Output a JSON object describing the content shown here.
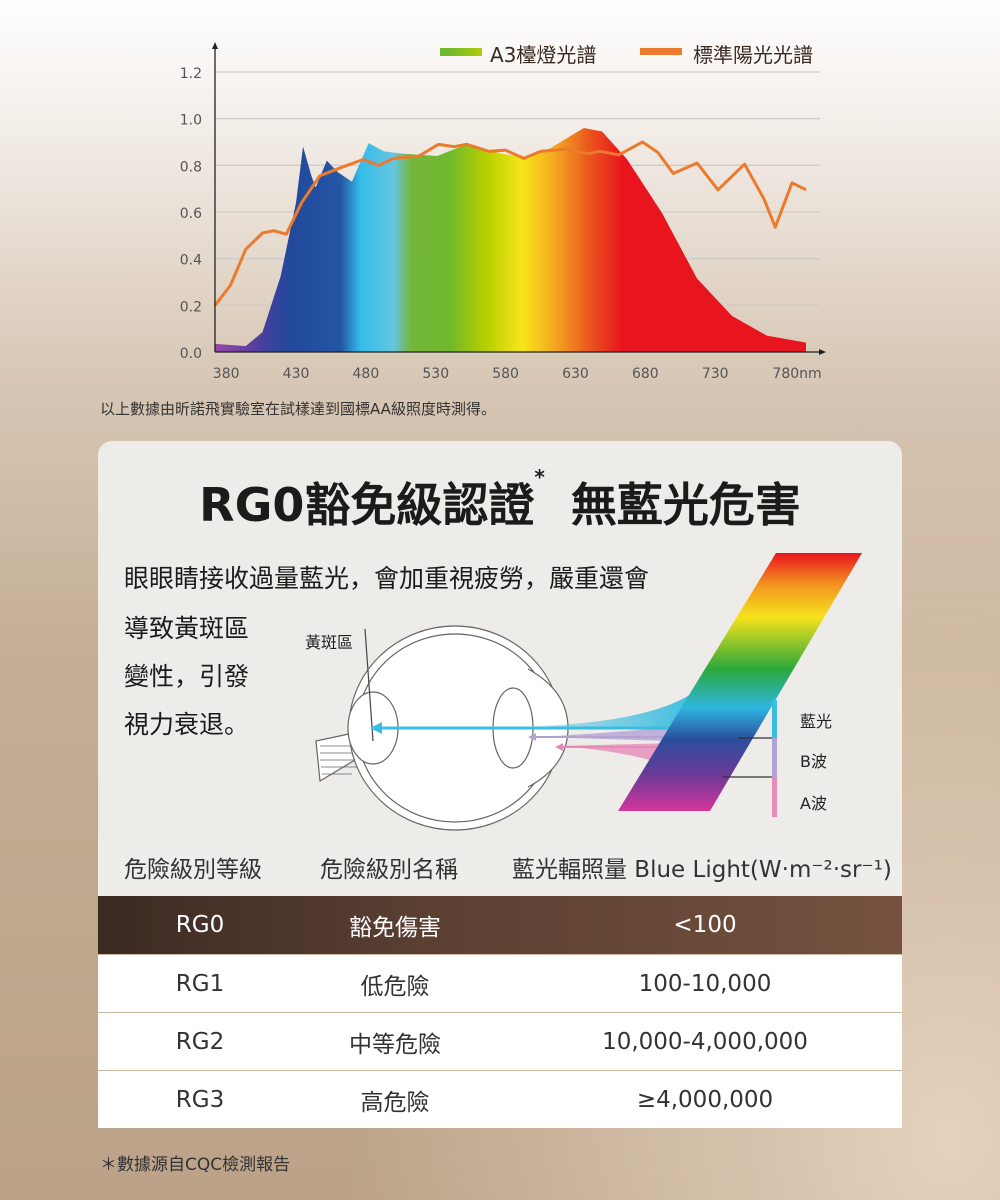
{
  "chart_data": {
    "type": "area",
    "xlabel": "",
    "ylabel": "",
    "x_unit": "nm",
    "xlim": [
      372,
      795
    ],
    "ylim": [
      0,
      1.2
    ],
    "x_ticks": [
      "380",
      "430",
      "480",
      "530",
      "580",
      "630",
      "680",
      "730",
      "780nm"
    ],
    "x_tick_values": [
      380,
      430,
      480,
      530,
      580,
      630,
      680,
      730,
      780
    ],
    "y_ticks": [
      "0.0",
      "0.2",
      "0.4",
      "0.6",
      "0.8",
      "1.0",
      "1.2"
    ],
    "grid": "horizontal",
    "legend_position": "top-right",
    "series": [
      {
        "name": "A3檯燈光譜",
        "style": "spectrum-gradient-area",
        "x": [
          372,
          394,
          406,
          419,
          430,
          435,
          441,
          444,
          452,
          460,
          470,
          482,
          493,
          506,
          531,
          552,
          577,
          593,
          611,
          636,
          649,
          667,
          692,
          717,
          742,
          767,
          795
        ],
        "y": [
          0.035,
          0.025,
          0.085,
          0.325,
          0.64,
          0.88,
          0.755,
          0.705,
          0.82,
          0.77,
          0.73,
          0.895,
          0.86,
          0.85,
          0.84,
          0.89,
          0.85,
          0.835,
          0.87,
          0.96,
          0.945,
          0.825,
          0.595,
          0.315,
          0.155,
          0.07,
          0.04
        ]
      },
      {
        "name": "標準陽光光譜",
        "color": "#ec7a2c",
        "style": "line",
        "x": [
          372,
          383,
          394,
          406,
          414,
          423,
          434,
          447,
          462,
          478,
          489,
          500,
          518,
          532,
          543,
          552,
          568,
          580,
          593,
          605,
          624,
          639,
          647,
          661,
          678,
          689,
          700,
          717,
          732,
          751,
          765,
          773,
          785,
          795
        ],
        "y": [
          0.2,
          0.285,
          0.44,
          0.51,
          0.52,
          0.505,
          0.64,
          0.755,
          0.79,
          0.825,
          0.8,
          0.83,
          0.84,
          0.89,
          0.88,
          0.89,
          0.86,
          0.865,
          0.83,
          0.86,
          0.87,
          0.85,
          0.86,
          0.845,
          0.9,
          0.855,
          0.765,
          0.81,
          0.695,
          0.805,
          0.655,
          0.535,
          0.725,
          0.695
        ]
      }
    ]
  },
  "caption": "以上數據由昕諾飛實驗室在試樣達到國標AA級照度時測得。",
  "card": {
    "title": "RG0豁免級認證",
    "title_mark": "*",
    "title2": "無藍光危害",
    "para": [
      "眼眼睛接收過量藍光，會加重視疲勞，嚴重還會",
      "導致黃斑區",
      "變性，引發",
      "視力衰退。"
    ],
    "macula_label": "黃斑區",
    "bands": [
      "藍光",
      "B波",
      "A波"
    ],
    "band_colors": [
      "#3bbde0",
      "#b3a3d3",
      "#e58bb8"
    ]
  },
  "table": {
    "headers": [
      "危險級別等級",
      "危險級別名稱",
      "藍光輻照量 Blue Light(W‧m⁻²‧sr⁻¹)"
    ],
    "rows": [
      [
        "RG0",
        "豁免傷害",
        "<100"
      ],
      [
        "RG1",
        "低危險",
        "100-10,000"
      ],
      [
        "RG2",
        "中等危險",
        "10,000-4,000,000"
      ],
      [
        "RG3",
        "高危險",
        "≥4,000,000"
      ]
    ]
  },
  "footnote": "＊數據源自CQC檢測報告"
}
